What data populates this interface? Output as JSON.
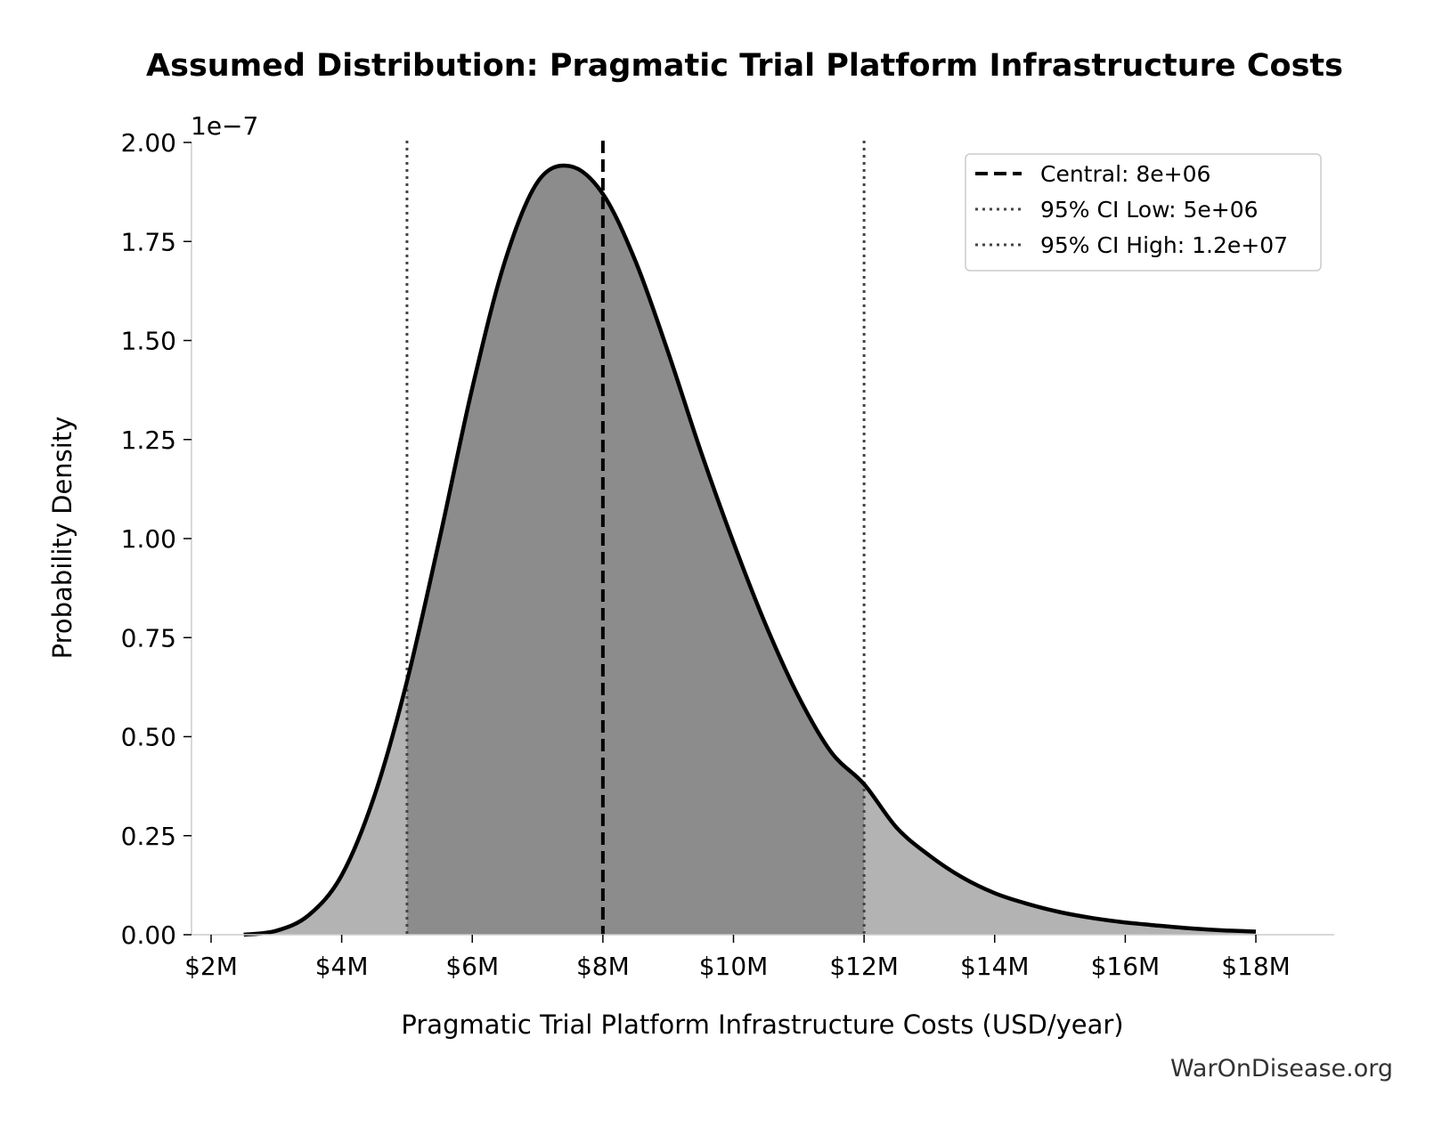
{
  "chart_data": {
    "type": "area",
    "title": "Assumed Distribution: Pragmatic Trial Platform Infrastructure Costs",
    "xlabel": "Pragmatic Trial Platform Infrastructure Costs (USD/year)",
    "ylabel": "Probability Density",
    "y_scale_label": "1e−7",
    "y_scale": 1e-07,
    "xlim": [
      1700000,
      19200000
    ],
    "ylim": [
      0,
      2.0
    ],
    "x_ticks": [
      2000000,
      4000000,
      6000000,
      8000000,
      10000000,
      12000000,
      14000000,
      16000000,
      18000000
    ],
    "x_tick_labels": [
      "$2M",
      "$4M",
      "$6M",
      "$8M",
      "$10M",
      "$12M",
      "$14M",
      "$16M",
      "$18M"
    ],
    "y_ticks": [
      0,
      0.25,
      0.5,
      0.75,
      1.0,
      1.25,
      1.5,
      1.75,
      2.0
    ],
    "y_tick_labels": [
      "0.00",
      "0.25",
      "0.50",
      "0.75",
      "1.00",
      "1.25",
      "1.50",
      "1.75",
      "2.00"
    ],
    "series": [
      {
        "name": "density",
        "x": [
          2500000,
          3000000,
          3500000,
          4000000,
          4500000,
          5000000,
          5500000,
          6000000,
          6500000,
          7000000,
          7500000,
          8000000,
          8500000,
          9000000,
          9500000,
          10000000,
          10500000,
          11000000,
          11500000,
          12000000,
          12500000,
          13000000,
          13500000,
          14000000,
          14500000,
          15000000,
          15500000,
          16000000,
          16500000,
          17000000,
          17500000,
          18000000
        ],
        "y": [
          0.0,
          0.01,
          0.05,
          0.15,
          0.35,
          0.64,
          1.0,
          1.38,
          1.7,
          1.9,
          1.94,
          1.87,
          1.7,
          1.47,
          1.22,
          0.99,
          0.78,
          0.6,
          0.46,
          0.38,
          0.27,
          0.2,
          0.145,
          0.105,
          0.078,
          0.057,
          0.042,
          0.031,
          0.023,
          0.016,
          0.011,
          0.008
        ]
      }
    ],
    "markers": [
      {
        "label": "Central: 8e+06",
        "x": 8000000,
        "style": "dashed"
      },
      {
        "label": "95% CI Low: 5e+06",
        "x": 5000000,
        "style": "dotted"
      },
      {
        "label": "95% CI High: 1.2e+07",
        "x": 12000000,
        "style": "dotted"
      }
    ],
    "shaded_interval": [
      5000000,
      12000000
    ],
    "legend_position": "top-right",
    "grid": false,
    "colors": {
      "curve": "#000000",
      "fill_outer": "#b3b3b3",
      "fill_inner": "#8c8c8c",
      "ci_line": "#444444",
      "axis": "#cccccc"
    }
  },
  "credit": "WarOnDisease.org"
}
